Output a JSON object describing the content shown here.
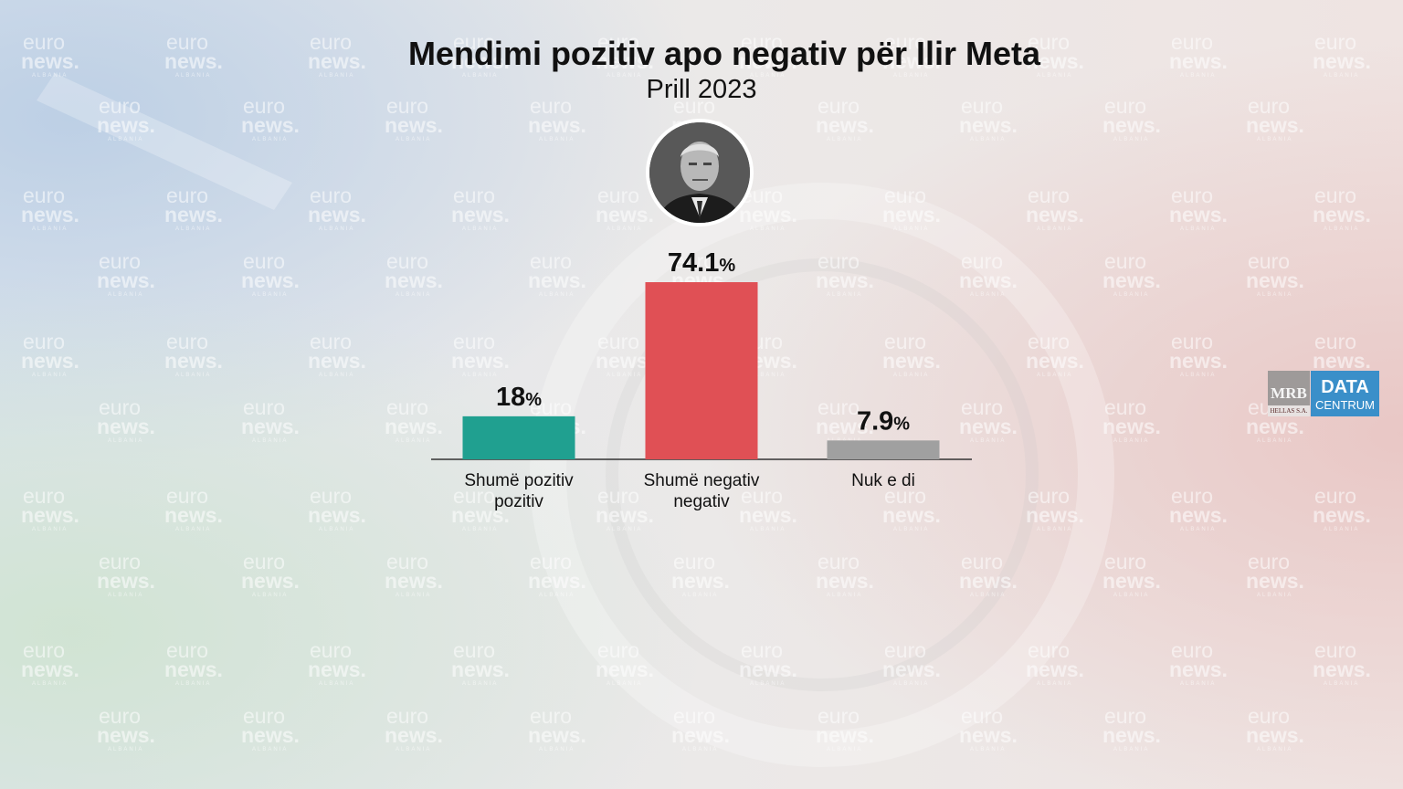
{
  "watermark": {
    "line1": "euro",
    "line2": "news.",
    "line3": "ALBANIA"
  },
  "header": {
    "title": "Mendimi pozitiv apo negativ për Ilir Meta",
    "subtitle": "Prill 2023"
  },
  "logo": {
    "mrb": "MRB",
    "mrb_sub": "HELLAS S.A.",
    "dc1": "DATA",
    "dc2": "CENTRUM"
  },
  "colors": {
    "positive": "#20a090",
    "negative": "#e05055",
    "unknown": "#a0a0a0"
  },
  "chart_data": {
    "type": "bar",
    "title": "Mendimi pozitiv apo negativ për Ilir Meta",
    "subtitle": "Prill 2023",
    "categories": [
      [
        "Shumë pozitiv",
        "pozitiv"
      ],
      [
        "Shumë negativ",
        "negativ"
      ],
      [
        "Nuk e di"
      ]
    ],
    "values": [
      18,
      74.1,
      7.9
    ],
    "value_labels": [
      "18",
      "74.1",
      "7.9"
    ],
    "unit": "%",
    "bar_colors": [
      "#20a090",
      "#e05055",
      "#a0a0a0"
    ],
    "ylim": [
      0,
      100
    ],
    "grid": false
  }
}
